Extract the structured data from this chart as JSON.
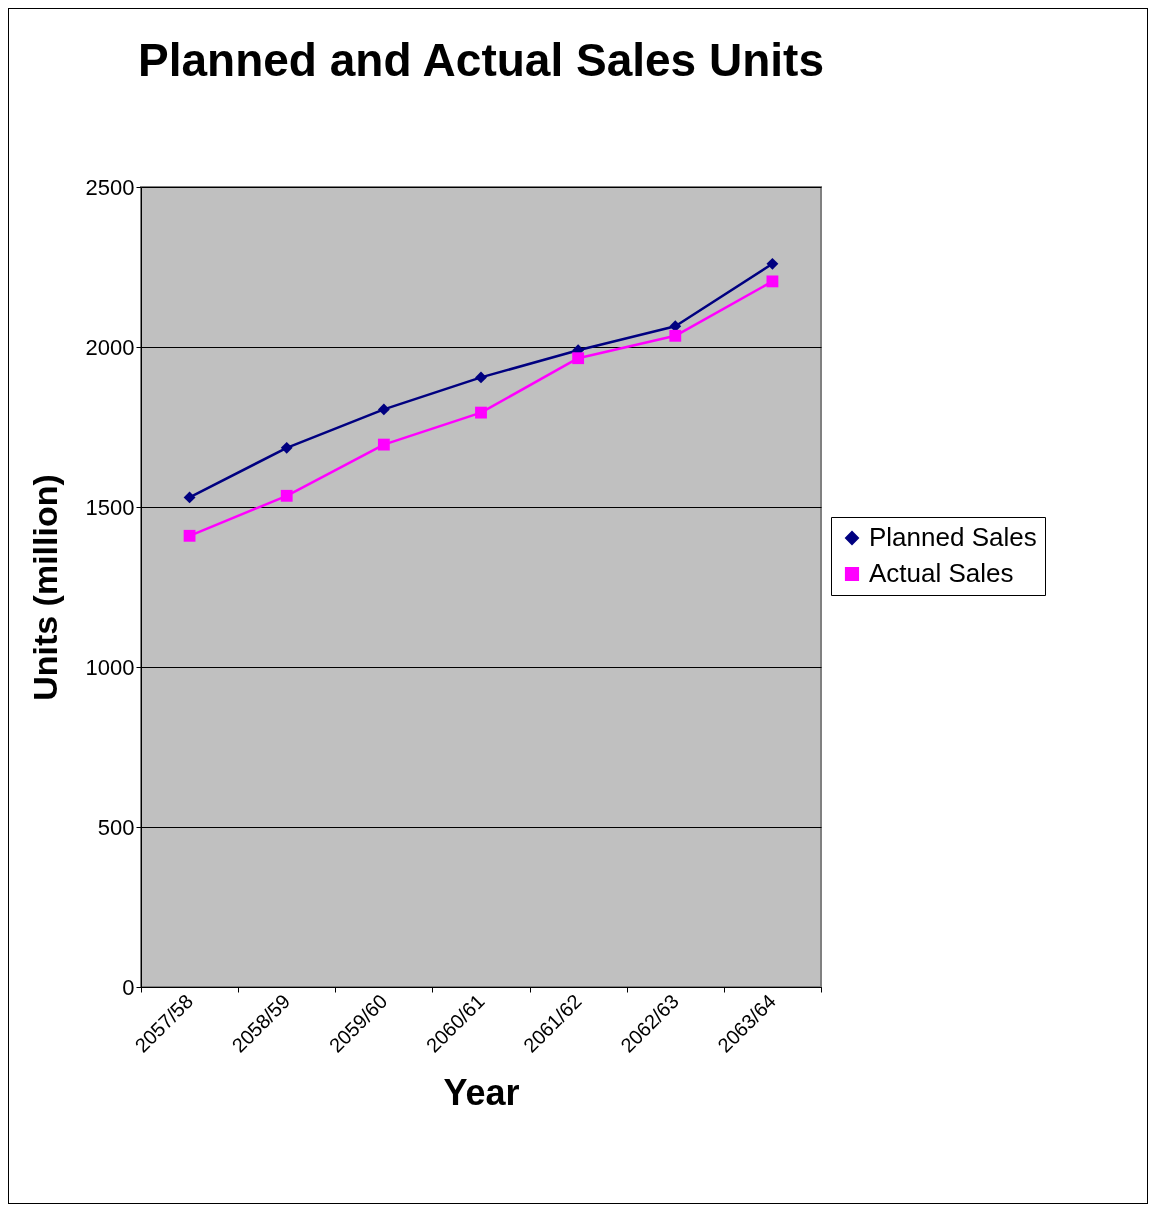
{
  "chart_data": {
    "type": "line",
    "title": "Planned and Actual Sales Units",
    "xlabel": "Year",
    "ylabel": "Units (million)",
    "categories": [
      "2057/58",
      "2058/59",
      "2059/60",
      "2060/61",
      "2061/62",
      "2062/63",
      "2063/64"
    ],
    "series": [
      {
        "name": "Planned Sales",
        "color": "#000080",
        "marker": "diamond",
        "values": [
          1530,
          1685,
          1805,
          1905,
          1990,
          2065,
          2260
        ]
      },
      {
        "name": "Actual Sales",
        "color": "#ff00ff",
        "marker": "square",
        "values": [
          1410,
          1535,
          1695,
          1795,
          1965,
          2035,
          2205
        ]
      }
    ],
    "ylim": [
      0,
      2500
    ],
    "yticks": [
      0,
      500,
      1000,
      1500,
      2000,
      2500
    ],
    "grid": "y",
    "legend": "right",
    "line_style": "solid"
  }
}
